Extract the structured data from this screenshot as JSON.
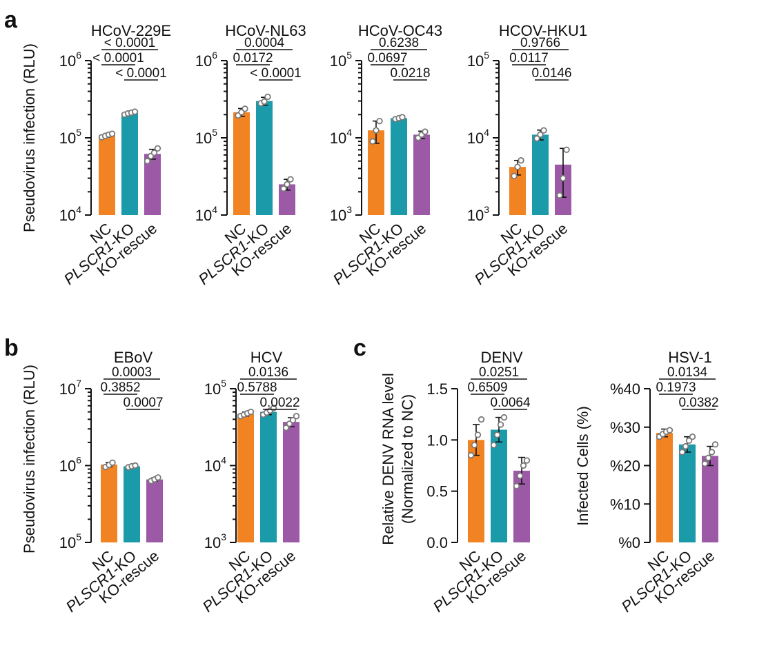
{
  "panel_labels": [
    "a",
    "b",
    "c"
  ],
  "palette": {
    "NC": "#f28322",
    "PLSCR1-KO": "#1b9aaa",
    "KO-rescue": "#9b59a6"
  },
  "categories": [
    "NC",
    "PLSCR1-KO",
    "KO-rescue"
  ],
  "ylabels": {
    "pseudovirus": "Pseudovirus infection (RLU)",
    "denv": [
      "Relative DENV RNA level",
      "(Normalized to NC)"
    ],
    "hsv": "Infected Cells (%)"
  },
  "chart_data": [
    {
      "panel": "a",
      "title": "HCoV-229E",
      "type": "bar",
      "scale": "log",
      "ylim": [
        10000,
        1000000
      ],
      "yticks": [
        10000,
        100000,
        1000000
      ],
      "ytick_labels": [
        {
          "base": "10",
          "exp": "4"
        },
        {
          "base": "10",
          "exp": "5"
        },
        {
          "base": "10",
          "exp": "6"
        }
      ],
      "ylabel": "Pseudovirus infection (RLU)",
      "categories": [
        "NC",
        "PLSCR1-KO",
        "KO-rescue"
      ],
      "values": [
        108000,
        210000,
        62000
      ],
      "errors": [
        6000,
        12000,
        9000
      ],
      "points": [
        [
          102000,
          106000,
          110000,
          113000
        ],
        [
          200000,
          207000,
          212000,
          218000
        ],
        [
          50000,
          58000,
          64000,
          73000
        ]
      ],
      "comparisons": [
        {
          "pair": [
            0,
            2
          ],
          "label": "< 0.0001"
        },
        {
          "pair": [
            0,
            1
          ],
          "label": "< 0.0001"
        },
        {
          "pair": [
            1,
            2
          ],
          "label": "< 0.0001"
        }
      ]
    },
    {
      "panel": "a",
      "title": "HCoV-NL63",
      "type": "bar",
      "scale": "log",
      "ylim": [
        10000,
        1000000
      ],
      "yticks": [
        10000,
        100000,
        1000000
      ],
      "ytick_labels": [
        {
          "base": "10",
          "exp": "4"
        },
        {
          "base": "10",
          "exp": "5"
        },
        {
          "base": "10",
          "exp": "6"
        }
      ],
      "categories": [
        "NC",
        "PLSCR1-KO",
        "KO-rescue"
      ],
      "values": [
        215000,
        300000,
        25000
      ],
      "errors": [
        25000,
        35000,
        4000
      ],
      "points": [
        [
          195000,
          215000,
          238000
        ],
        [
          280000,
          295000,
          340000
        ],
        [
          22000,
          25000,
          29000
        ]
      ],
      "comparisons": [
        {
          "pair": [
            0,
            2
          ],
          "label": "0.0004"
        },
        {
          "pair": [
            0,
            1
          ],
          "label": "0.0172"
        },
        {
          "pair": [
            1,
            2
          ],
          "label": "< 0.0001"
        }
      ]
    },
    {
      "panel": "a",
      "title": "HCoV-OC43",
      "type": "bar",
      "scale": "log",
      "ylim": [
        1000,
        100000
      ],
      "yticks": [
        1000,
        10000,
        100000
      ],
      "ytick_labels": [
        {
          "base": "10",
          "exp": "3"
        },
        {
          "base": "10",
          "exp": "4"
        },
        {
          "base": "10",
          "exp": "5"
        }
      ],
      "categories": [
        "NC",
        "PLSCR1-KO",
        "KO-rescue"
      ],
      "values": [
        12500,
        18000,
        11000
      ],
      "errors": [
        4000,
        800,
        1200
      ],
      "points": [
        [
          9000,
          12500,
          16500
        ],
        [
          17500,
          18000,
          18500
        ],
        [
          10000,
          11000,
          12000
        ]
      ],
      "comparisons": [
        {
          "pair": [
            0,
            2
          ],
          "label": "0.6238"
        },
        {
          "pair": [
            0,
            1
          ],
          "label": "0.0697"
        },
        {
          "pair": [
            1,
            2
          ],
          "label": "0.0218"
        }
      ]
    },
    {
      "panel": "a",
      "title": "HCOV-HKU1",
      "type": "bar",
      "scale": "log",
      "ylim": [
        1000,
        100000
      ],
      "yticks": [
        1000,
        10000,
        100000
      ],
      "ytick_labels": [
        {
          "base": "10",
          "exp": "3"
        },
        {
          "base": "10",
          "exp": "4"
        },
        {
          "base": "10",
          "exp": "5"
        }
      ],
      "categories": [
        "NC",
        "PLSCR1-KO",
        "KO-rescue"
      ],
      "values": [
        4200,
        11000,
        4500
      ],
      "errors": [
        900,
        1600,
        2800
      ],
      "points": [
        [
          3200,
          4200,
          5100
        ],
        [
          9800,
          11000,
          12500
        ],
        [
          1800,
          3000,
          7000
        ]
      ],
      "comparisons": [
        {
          "pair": [
            0,
            2
          ],
          "label": "0.9766"
        },
        {
          "pair": [
            0,
            1
          ],
          "label": "0.0117"
        },
        {
          "pair": [
            1,
            2
          ],
          "label": "0.0146"
        }
      ]
    },
    {
      "panel": "b",
      "title": "EBoV",
      "type": "bar",
      "scale": "log",
      "ylim": [
        100000,
        10000000
      ],
      "yticks": [
        100000,
        1000000,
        10000000
      ],
      "ytick_labels": [
        {
          "base": "10",
          "exp": "5"
        },
        {
          "base": "10",
          "exp": "6"
        },
        {
          "base": "10",
          "exp": "7"
        }
      ],
      "ylabel": "Pseudovirus infection (RLU)",
      "categories": [
        "NC",
        "PLSCR1-KO",
        "KO-rescue"
      ],
      "values": [
        1030000,
        980000,
        660000
      ],
      "errors": [
        70000,
        30000,
        30000
      ],
      "points": [
        [
          960000,
          1020000,
          1090000
        ],
        [
          950000,
          980000,
          1000000
        ],
        [
          630000,
          660000,
          700000
        ]
      ],
      "comparisons": [
        {
          "pair": [
            0,
            2
          ],
          "label": "0.0003"
        },
        {
          "pair": [
            0,
            1
          ],
          "label": "0.3852"
        },
        {
          "pair": [
            1,
            2
          ],
          "label": "0.0007"
        }
      ]
    },
    {
      "panel": "b",
      "title": "HCV",
      "type": "bar",
      "scale": "log",
      "ylim": [
        1000,
        100000
      ],
      "yticks": [
        1000,
        10000,
        100000
      ],
      "ytick_labels": [
        {
          "base": "10",
          "exp": "3"
        },
        {
          "base": "10",
          "exp": "4"
        },
        {
          "base": "10",
          "exp": "5"
        }
      ],
      "categories": [
        "NC",
        "PLSCR1-KO",
        "KO-rescue"
      ],
      "values": [
        47000,
        50000,
        37000
      ],
      "errors": [
        3000,
        4000,
        5000
      ],
      "points": [
        [
          44000,
          46000,
          48000,
          50000
        ],
        [
          46000,
          49000,
          52000,
          56000
        ],
        [
          31000,
          35000,
          39000,
          44000
        ]
      ],
      "comparisons": [
        {
          "pair": [
            0,
            2
          ],
          "label": "0.0136"
        },
        {
          "pair": [
            0,
            1
          ],
          "label": "0.5788"
        },
        {
          "pair": [
            1,
            2
          ],
          "label": "0.0022"
        }
      ]
    },
    {
      "panel": "c",
      "title": "DENV",
      "type": "bar",
      "scale": "linear",
      "ylim": [
        0,
        1.5
      ],
      "yticks": [
        0,
        0.5,
        1.0,
        1.5
      ],
      "ytick_labels": [
        "0.0",
        "0.5",
        "1.0",
        "1.5"
      ],
      "ylabel": "Relative DENV RNA level (Normalized to NC)",
      "categories": [
        "NC",
        "PLSCR1-KO",
        "KO-rescue"
      ],
      "values": [
        1.0,
        1.1,
        0.7
      ],
      "errors": [
        0.15,
        0.12,
        0.13
      ],
      "points": [
        [
          0.85,
          0.95,
          1.05,
          1.2
        ],
        [
          0.95,
          1.05,
          1.15,
          1.22
        ],
        [
          0.55,
          0.65,
          0.75,
          0.8
        ]
      ],
      "comparisons": [
        {
          "pair": [
            0,
            2
          ],
          "label": "0.0251"
        },
        {
          "pair": [
            0,
            1
          ],
          "label": "0.6509"
        },
        {
          "pair": [
            1,
            2
          ],
          "label": "0.0064"
        }
      ]
    },
    {
      "panel": "c",
      "title": "HSV-1",
      "type": "bar",
      "scale": "linear",
      "ylim": [
        0,
        40
      ],
      "yticks": [
        0,
        10,
        20,
        30,
        40
      ],
      "ytick_labels": [
        "%0",
        "%10",
        "%20",
        "%30",
        "%40"
      ],
      "ylabel": "Infected Cells (%)",
      "categories": [
        "NC",
        "PLSCR1-KO",
        "KO-rescue"
      ],
      "values": [
        28.5,
        25.5,
        22.5
      ],
      "errors": [
        1.0,
        2.0,
        2.5
      ],
      "points": [
        [
          27.5,
          28.2,
          28.8,
          29.2
        ],
        [
          23.5,
          25,
          26.5,
          27.5
        ],
        [
          20.5,
          22,
          23.5,
          25.5
        ]
      ],
      "comparisons": [
        {
          "pair": [
            0,
            2
          ],
          "label": "0.0134"
        },
        {
          "pair": [
            0,
            1
          ],
          "label": "0.1973"
        },
        {
          "pair": [
            1,
            2
          ],
          "label": "0.0382"
        }
      ]
    }
  ]
}
